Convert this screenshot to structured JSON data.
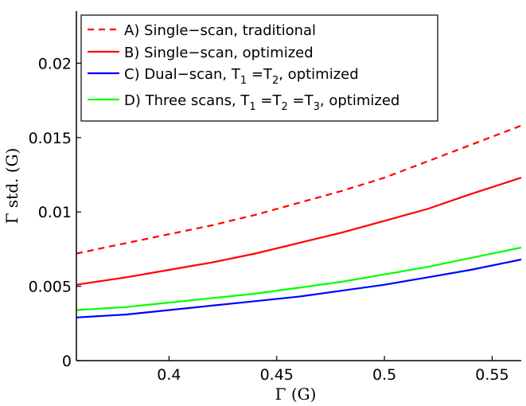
{
  "chart_data": {
    "type": "line",
    "xlabel": "Γ (G)",
    "ylabel": "Γ std. (G)",
    "xlim": [
      0.357,
      0.5635
    ],
    "ylim": [
      0,
      0.0235
    ],
    "x_ticks": [
      0.4,
      0.45,
      0.5,
      0.55
    ],
    "x_tick_labels": [
      "0.4",
      "0.45",
      "0.5",
      "0.55"
    ],
    "y_ticks": [
      0,
      0.005,
      0.01,
      0.015,
      0.02
    ],
    "y_tick_labels": [
      "0",
      "0.005",
      "0.01",
      "0.015",
      "0.02"
    ],
    "grid": false,
    "legend_position": "top-left",
    "x": [
      0.357,
      0.38,
      0.4,
      0.42,
      0.44,
      0.46,
      0.48,
      0.5,
      0.52,
      0.54,
      0.5635
    ],
    "series": [
      {
        "name": "A) Single−scan, traditional",
        "legend_parts": [
          {
            "t": "A) Single−scan, traditional"
          }
        ],
        "color": "#ff0000",
        "dash": true,
        "values": [
          0.0072,
          0.0079,
          0.0085,
          0.0091,
          0.0098,
          0.0106,
          0.0114,
          0.0123,
          0.0134,
          0.0145,
          0.0158
        ]
      },
      {
        "name": "B) Single−scan, optimized",
        "legend_parts": [
          {
            "t": "B) Single−scan, optimized"
          }
        ],
        "color": "#ff0000",
        "dash": false,
        "values": [
          0.0051,
          0.0056,
          0.0061,
          0.0066,
          0.0072,
          0.0079,
          0.0086,
          0.0094,
          0.0102,
          0.0112,
          0.0123
        ]
      },
      {
        "name": "C) Dual−scan, T1 =T2, optimized",
        "legend_parts": [
          {
            "t": "C) Dual−scan, T"
          },
          {
            "t": "1",
            "sub": true
          },
          {
            "t": " =T"
          },
          {
            "t": "2",
            "sub": true
          },
          {
            "t": ", optimized"
          }
        ],
        "color": "#0000ff",
        "dash": false,
        "values": [
          0.0029,
          0.0031,
          0.0034,
          0.0037,
          0.004,
          0.0043,
          0.0047,
          0.0051,
          0.0056,
          0.0061,
          0.0068
        ]
      },
      {
        "name": "D) Three scans, T1 =T2 =T3, optimized",
        "legend_parts": [
          {
            "t": "D) Three scans, T"
          },
          {
            "t": "1",
            "sub": true
          },
          {
            "t": " =T"
          },
          {
            "t": "2",
            "sub": true
          },
          {
            "t": " =T"
          },
          {
            "t": "3",
            "sub": true
          },
          {
            "t": ", optimized"
          }
        ],
        "color": "#00ff00",
        "dash": false,
        "values": [
          0.0034,
          0.0036,
          0.0039,
          0.0042,
          0.0045,
          0.0049,
          0.0053,
          0.0058,
          0.0063,
          0.0069,
          0.0076
        ]
      }
    ]
  }
}
